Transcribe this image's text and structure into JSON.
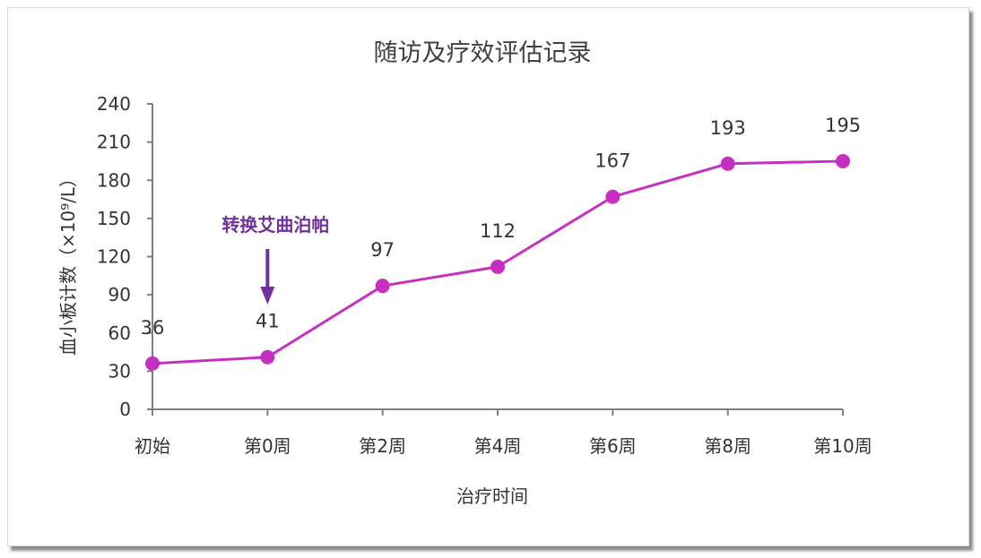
{
  "chart_data": {
    "type": "line",
    "title": "随访及疗效评估记录",
    "xlabel": "治疗时间",
    "ylabel": "血小板计数（×10⁹/L）",
    "categories": [
      "初始",
      "第0周",
      "第2周",
      "第4周",
      "第6周",
      "第8周",
      "第10周"
    ],
    "series": [
      {
        "values": [
          36,
          41,
          97,
          112,
          167,
          193,
          195
        ],
        "color": "#c630c0"
      }
    ],
    "ylim": [
      0,
      240
    ],
    "yticks": [
      0,
      30,
      60,
      90,
      120,
      150,
      180,
      210,
      240
    ],
    "grid": false,
    "legend": "none",
    "annotations": [
      {
        "text": "转换艾曲泊帕",
        "category": "第0周",
        "arrow": "down",
        "color": "#7030a0"
      }
    ]
  }
}
